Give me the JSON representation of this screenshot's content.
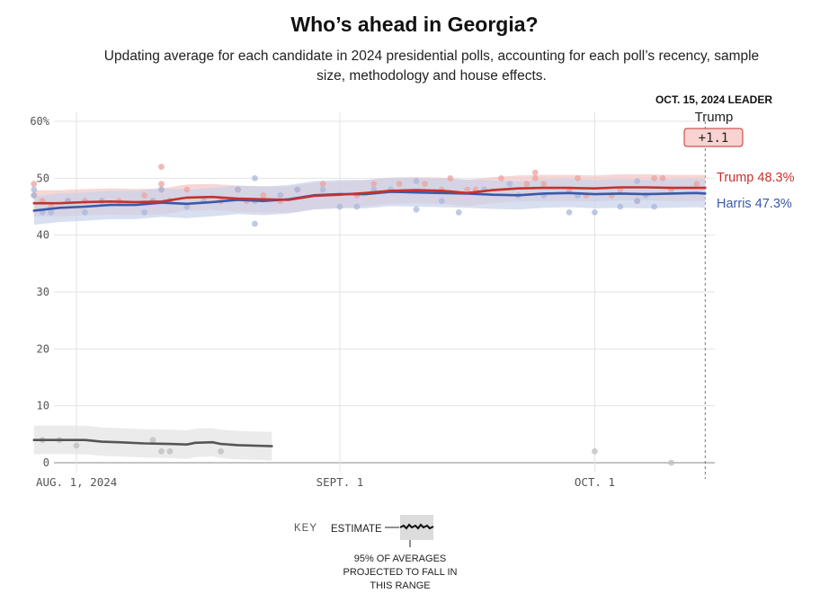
{
  "title": "Who’s ahead in Georgia?",
  "subtitle": "Updating average for each candidate in 2024 presidential polls, accounting for each poll’s recency, sample size, methodology and house effects.",
  "colors": {
    "trump": "#c7312b",
    "harris": "#3a59a8",
    "other": "#555555",
    "grid": "#e3e3e3"
  },
  "chart_data": {
    "type": "line",
    "title": "Who’s ahead in Georgia?",
    "x_type": "date",
    "x_range": [
      "2024-07-27",
      "2024-10-15"
    ],
    "ylim": [
      0,
      60
    ],
    "y_ticks": [
      {
        "value": 0,
        "label": "0"
      },
      {
        "value": 10,
        "label": "10"
      },
      {
        "value": 20,
        "label": "20"
      },
      {
        "value": 30,
        "label": "30"
      },
      {
        "value": 40,
        "label": "40"
      },
      {
        "value": 50,
        "label": "50"
      },
      {
        "value": 60,
        "label": "60%"
      }
    ],
    "x_ticks": [
      {
        "day": 5,
        "label": "AUG. 1, 2024"
      },
      {
        "day": 36,
        "label": "SEPT. 1"
      },
      {
        "day": 66,
        "label": "OCT. 1"
      }
    ],
    "leader": {
      "heading": "OCT. 15, 2024 LEADER",
      "name": "Trump",
      "margin": "+1.1",
      "day": 79
    },
    "series": [
      {
        "name": "Trump",
        "label": "Trump 48.3%",
        "color": "#c7312b",
        "band_color": "#f2c6c5",
        "x": [
          0,
          3,
          6,
          9,
          12,
          15,
          18,
          21,
          24,
          27,
          30,
          33,
          36,
          39,
          42,
          45,
          48,
          51,
          54,
          57,
          60,
          63,
          66,
          69,
          72,
          75,
          78,
          79
        ],
        "values": [
          45.6,
          45.6,
          45.8,
          45.9,
          45.8,
          45.9,
          46.6,
          46.7,
          46.4,
          46.3,
          46.2,
          46.9,
          47.1,
          47.4,
          47.8,
          47.9,
          47.8,
          47.4,
          47.9,
          48.2,
          48.3,
          48.3,
          48.2,
          48.4,
          48.4,
          48.3,
          48.3,
          48.3
        ],
        "band": 2.3,
        "polls": [
          [
            0,
            49
          ],
          [
            0,
            47
          ],
          [
            1,
            46
          ],
          [
            2,
            45
          ],
          [
            4,
            46
          ],
          [
            6,
            46
          ],
          [
            8,
            46
          ],
          [
            10,
            46
          ],
          [
            13,
            47
          ],
          [
            14,
            46
          ],
          [
            15,
            52
          ],
          [
            15,
            49
          ],
          [
            15,
            48
          ],
          [
            16,
            46
          ],
          [
            18,
            48
          ],
          [
            22,
            46
          ],
          [
            24,
            48
          ],
          [
            25,
            46
          ],
          [
            27,
            47
          ],
          [
            29,
            46
          ],
          [
            31,
            48
          ],
          [
            34,
            49
          ],
          [
            38,
            47
          ],
          [
            40,
            49
          ],
          [
            43,
            49
          ],
          [
            46,
            49
          ],
          [
            48,
            48
          ],
          [
            49,
            50
          ],
          [
            51,
            48
          ],
          [
            52,
            48
          ],
          [
            55,
            50
          ],
          [
            58,
            49
          ],
          [
            59,
            51
          ],
          [
            59,
            50
          ],
          [
            60,
            49
          ],
          [
            63,
            48
          ],
          [
            64,
            50
          ],
          [
            65,
            47
          ],
          [
            68,
            47
          ],
          [
            69,
            48
          ],
          [
            71,
            46
          ],
          [
            73,
            50
          ],
          [
            74,
            50
          ],
          [
            75,
            48
          ],
          [
            78,
            49
          ]
        ]
      },
      {
        "name": "Harris",
        "label": "Harris 47.3%",
        "color": "#3a59a8",
        "band_color": "#c8d2ea",
        "x": [
          0,
          3,
          6,
          9,
          12,
          15,
          18,
          21,
          24,
          27,
          30,
          33,
          36,
          39,
          42,
          45,
          48,
          51,
          54,
          57,
          60,
          63,
          66,
          69,
          72,
          75,
          78,
          79
        ],
        "values": [
          44.3,
          44.8,
          45.0,
          45.3,
          45.3,
          45.7,
          45.5,
          45.8,
          46.2,
          46.0,
          46.3,
          47.0,
          47.2,
          47.2,
          47.6,
          47.5,
          47.4,
          47.3,
          47.1,
          47.0,
          47.3,
          47.4,
          47.2,
          47.3,
          47.2,
          47.3,
          47.4,
          47.3
        ],
        "band": 2.5,
        "polls": [
          [
            0,
            48
          ],
          [
            0,
            47
          ],
          [
            1,
            44
          ],
          [
            2,
            44
          ],
          [
            4,
            46
          ],
          [
            6,
            44
          ],
          [
            8,
            46
          ],
          [
            13,
            44
          ],
          [
            14,
            46
          ],
          [
            15,
            48
          ],
          [
            16,
            46
          ],
          [
            18,
            45
          ],
          [
            20,
            46
          ],
          [
            24,
            48
          ],
          [
            26,
            46
          ],
          [
            26,
            50
          ],
          [
            26,
            42
          ],
          [
            29,
            47
          ],
          [
            31,
            48
          ],
          [
            34,
            48
          ],
          [
            36,
            45
          ],
          [
            38,
            45
          ],
          [
            40,
            48
          ],
          [
            42,
            48
          ],
          [
            45,
            44.5
          ],
          [
            45,
            49.5
          ],
          [
            48,
            46
          ],
          [
            50,
            44
          ],
          [
            53,
            48
          ],
          [
            56,
            49
          ],
          [
            57,
            47
          ],
          [
            60,
            47
          ],
          [
            63,
            44
          ],
          [
            64,
            47
          ],
          [
            66,
            44
          ],
          [
            69,
            45
          ],
          [
            71,
            46
          ],
          [
            71,
            49.5
          ],
          [
            72,
            47
          ],
          [
            73,
            45
          ]
        ]
      },
      {
        "name": "Other",
        "label": "",
        "color": "#555555",
        "band_color": "#e2e2e2",
        "x": [
          0,
          3,
          6,
          8,
          10,
          13,
          16,
          18,
          19,
          21,
          22,
          24,
          26,
          28
        ],
        "values": [
          4.0,
          4.0,
          4.0,
          3.7,
          3.6,
          3.4,
          3.3,
          3.2,
          3.5,
          3.6,
          3.3,
          3.1,
          3.0,
          2.9
        ],
        "band": 2.5,
        "polls": [
          [
            1,
            4
          ],
          [
            3,
            4
          ],
          [
            5,
            3
          ],
          [
            14,
            4
          ],
          [
            15,
            2
          ],
          [
            16,
            2
          ],
          [
            22,
            2
          ],
          [
            66,
            2
          ],
          [
            75,
            0
          ]
        ]
      }
    ]
  },
  "key": {
    "label": "KEY",
    "estimate": "ESTIMATE",
    "range_note_lines": [
      "95% OF AVERAGES",
      "PROJECTED TO FALL IN",
      "THIS RANGE"
    ]
  }
}
